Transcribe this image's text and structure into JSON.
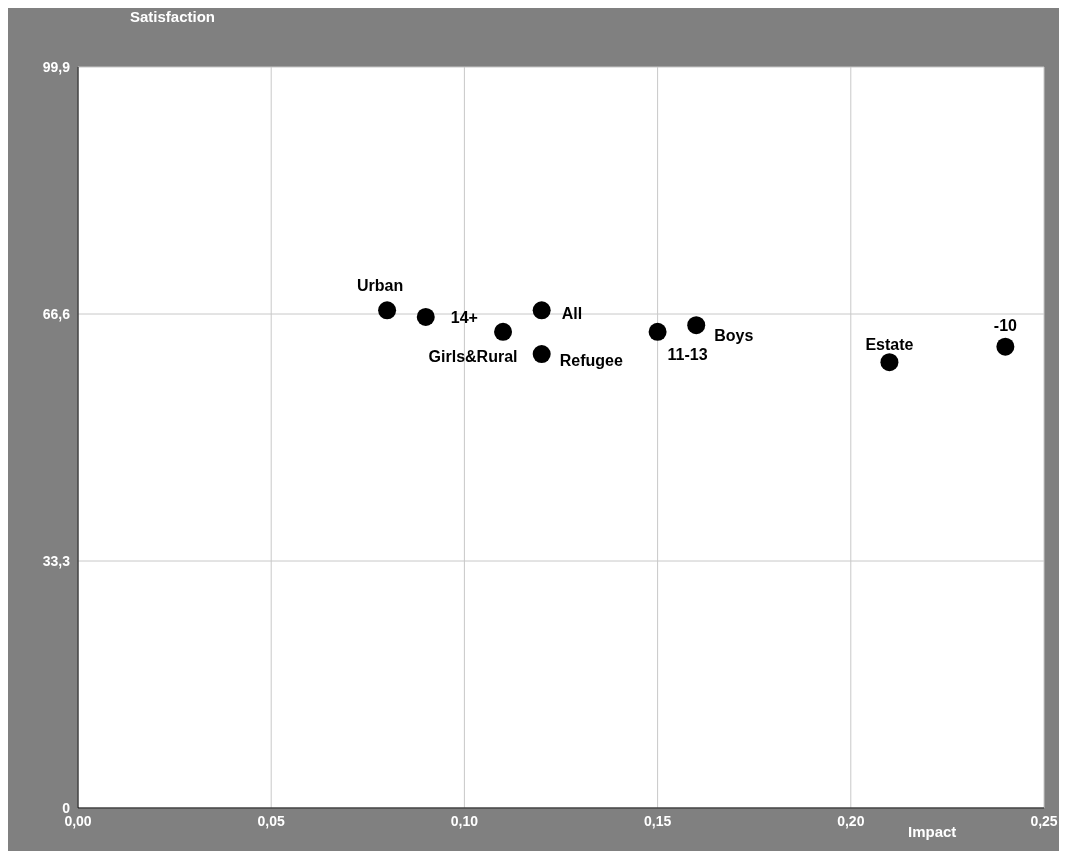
{
  "chart_data": {
    "type": "scatter",
    "xlabel": "Impact",
    "ylabel": "Satisfaction",
    "x": [
      0.08,
      0.09,
      0.11,
      0.12,
      0.12,
      0.15,
      0.16,
      0.21,
      0.24
    ],
    "values": [
      67.1,
      66.2,
      64.2,
      67.1,
      61.2,
      64.2,
      65.1,
      60.1,
      62.2
    ],
    "color": "#000000",
    "marker": "circle",
    "grid": true,
    "xlim": [
      0,
      0.25
    ],
    "xticks": [
      {
        "value": 0,
        "label": "0,00"
      },
      {
        "value": 0.05,
        "label": "0,05"
      },
      {
        "value": 0.1,
        "label": "0,10"
      },
      {
        "value": 0.15,
        "label": "0,15"
      },
      {
        "value": 0.2,
        "label": "0,20"
      },
      {
        "value": 0.25,
        "label": "0,25"
      }
    ],
    "ylim": [
      0,
      99.9
    ],
    "yticks": [
      0,
      {
        "value": 33.3,
        "label": "33,3"
      },
      {
        "value": 66.6,
        "label": "66,6"
      },
      {
        "value": 99.9,
        "label": "99,9"
      }
    ],
    "annotations": [
      {
        "text": "Urban",
        "x": 0.08,
        "y": 67.1
      },
      {
        "text": "14+",
        "x": 0.09,
        "y": 66.2
      },
      {
        "text": "Girls&Rural",
        "x": 0.11,
        "y": 64.2
      },
      {
        "text": "All",
        "x": 0.12,
        "y": 67.1
      },
      {
        "text": "Refugee",
        "x": 0.12,
        "y": 61.2
      },
      {
        "text": "11-13",
        "x": 0.15,
        "y": 64.2
      },
      {
        "text": "Boys",
        "x": 0.16,
        "y": 65.1
      },
      {
        "text": "Estate",
        "x": 0.21,
        "y": 60.1
      },
      {
        "text": "-10",
        "x": 0.24,
        "y": 62.2
      }
    ]
  }
}
